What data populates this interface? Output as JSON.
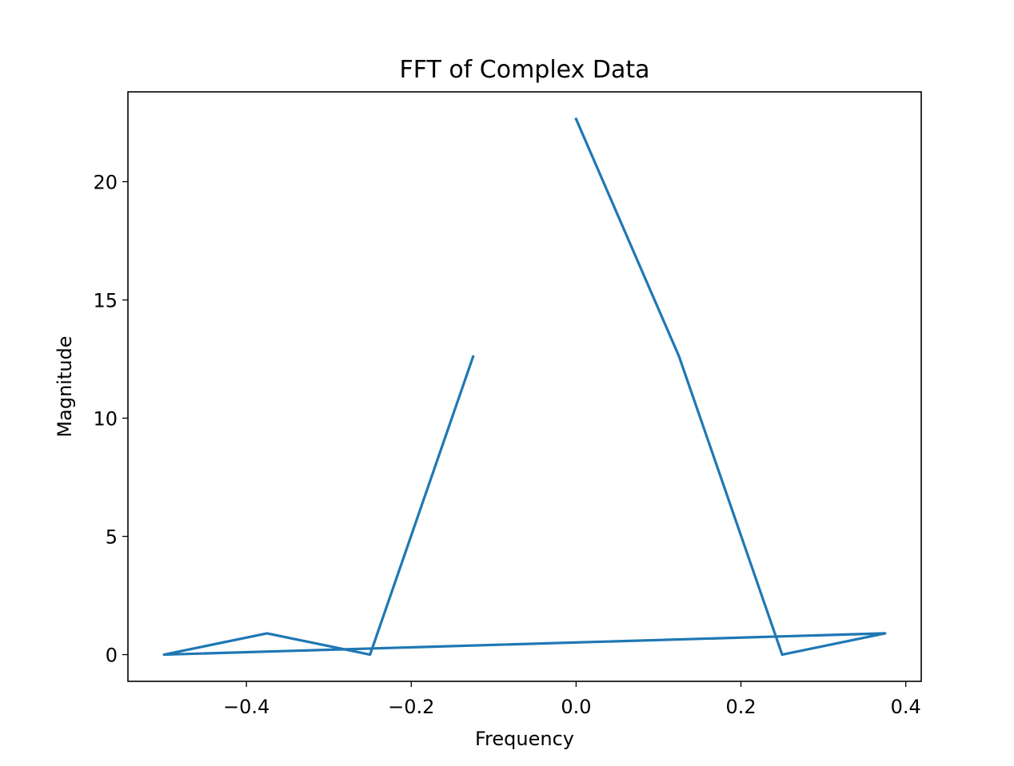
{
  "chart_data": {
    "type": "line",
    "title": "FFT of Complex Data",
    "xlabel": "Frequency",
    "ylabel": "Magnitude",
    "xlim": [
      -0.54375,
      0.41875
    ],
    "ylim": [
      -1.13,
      23.8
    ],
    "xticks": [
      -0.4,
      -0.2,
      0.0,
      0.2,
      0.4
    ],
    "xtick_labels": [
      "−0.4",
      "−0.2",
      "0.0",
      "0.2",
      "0.4"
    ],
    "yticks": [
      0,
      5,
      10,
      15,
      20
    ],
    "ytick_labels": [
      "0",
      "5",
      "10",
      "15",
      "20"
    ],
    "grid": false,
    "series": [
      {
        "color": "#1f77b4",
        "x": [
          0.0,
          0.125,
          0.25,
          0.375,
          -0.5,
          -0.375,
          -0.25,
          -0.125
        ],
        "y": [
          22.65,
          12.6,
          0.0,
          0.9,
          0.0,
          0.9,
          0.0,
          12.6
        ]
      }
    ]
  }
}
